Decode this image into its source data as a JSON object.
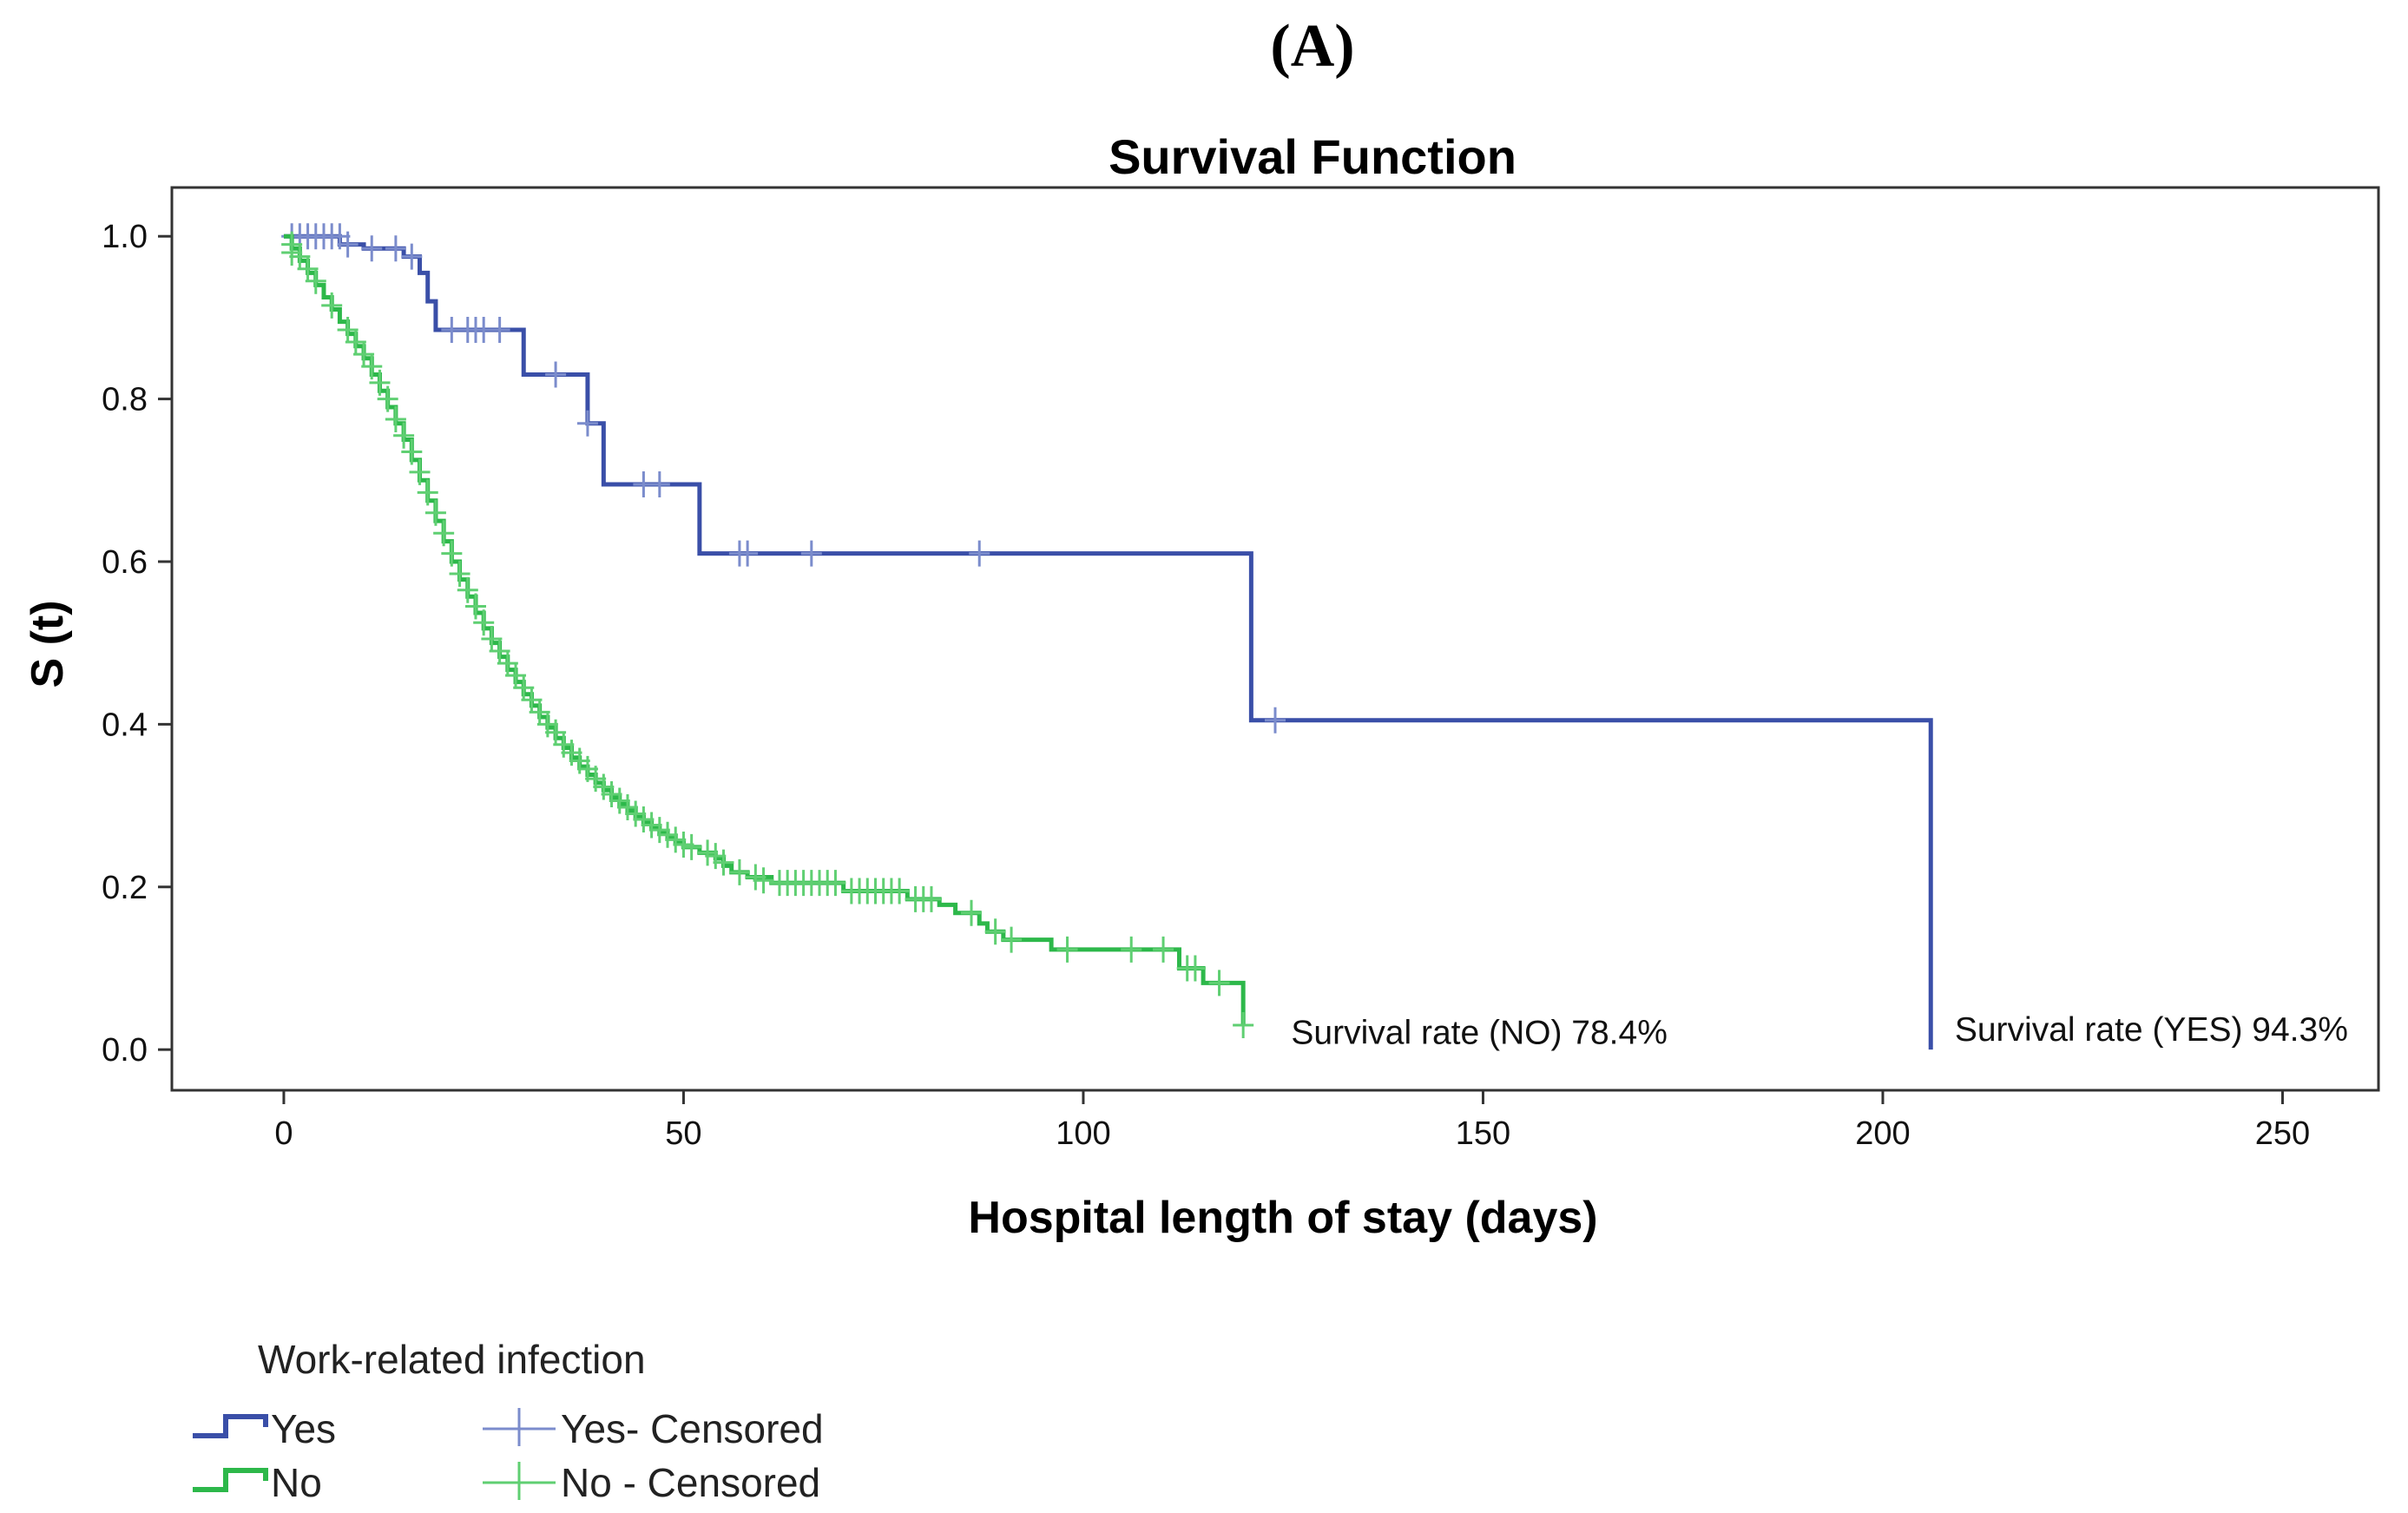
{
  "panel_label": "(A)",
  "chart_data": {
    "type": "line",
    "title": "Survival Function",
    "xlabel": "Hospital length of stay (days)",
    "ylabel": "S (t)",
    "xlim": [
      -14,
      262
    ],
    "ylim": [
      -0.05,
      1.06
    ],
    "xticks": [
      0,
      50,
      100,
      150,
      200,
      250
    ],
    "xtick_labels": [
      "0",
      "50",
      "100",
      "150",
      "200",
      "250"
    ],
    "yticks": [
      0.0,
      0.2,
      0.4,
      0.6,
      0.8,
      1.0
    ],
    "ytick_labels": [
      "0.0",
      "0.2",
      "0.4",
      "0.6",
      "0.8",
      "1.0"
    ],
    "series": [
      {
        "name": "Yes",
        "color": "#3a4fa8",
        "censor_color": "#7b8ccc",
        "steps": [
          [
            0,
            1.0
          ],
          [
            7,
            0.99
          ],
          [
            10,
            0.985
          ],
          [
            15,
            0.975
          ],
          [
            17,
            0.955
          ],
          [
            18,
            0.92
          ],
          [
            19,
            0.885
          ],
          [
            30,
            0.83
          ],
          [
            38,
            0.77
          ],
          [
            40,
            0.695
          ],
          [
            52,
            0.61
          ],
          [
            121,
            0.405
          ],
          [
            206,
            0.0
          ]
        ],
        "end_x": 206,
        "censored": [
          [
            1,
            1.0
          ],
          [
            2,
            1.0
          ],
          [
            3,
            1.0
          ],
          [
            4,
            1.0
          ],
          [
            5,
            1.0
          ],
          [
            6,
            1.0
          ],
          [
            7,
            1.0
          ],
          [
            8,
            0.99
          ],
          [
            11,
            0.985
          ],
          [
            14,
            0.985
          ],
          [
            16,
            0.975
          ],
          [
            21,
            0.885
          ],
          [
            23,
            0.885
          ],
          [
            24,
            0.885
          ],
          [
            25,
            0.885
          ],
          [
            27,
            0.885
          ],
          [
            34,
            0.83
          ],
          [
            38,
            0.77
          ],
          [
            45,
            0.695
          ],
          [
            47,
            0.695
          ],
          [
            57,
            0.61
          ],
          [
            58,
            0.61
          ],
          [
            66,
            0.61
          ],
          [
            87,
            0.61
          ],
          [
            124,
            0.405
          ]
        ]
      },
      {
        "name": "No",
        "color": "#2db84a",
        "censor_color": "#5fcf72",
        "steps": [
          [
            0,
            1.0
          ],
          [
            1,
            0.985
          ],
          [
            2,
            0.97
          ],
          [
            3,
            0.955
          ],
          [
            4,
            0.94
          ],
          [
            5,
            0.925
          ],
          [
            6,
            0.91
          ],
          [
            7,
            0.895
          ],
          [
            8,
            0.88
          ],
          [
            9,
            0.865
          ],
          [
            10,
            0.85
          ],
          [
            11,
            0.83
          ],
          [
            12,
            0.81
          ],
          [
            13,
            0.79
          ],
          [
            14,
            0.77
          ],
          [
            15,
            0.75
          ],
          [
            16,
            0.725
          ],
          [
            17,
            0.7
          ],
          [
            18,
            0.675
          ],
          [
            19,
            0.65
          ],
          [
            20,
            0.625
          ],
          [
            21,
            0.6
          ],
          [
            22,
            0.578
          ],
          [
            23,
            0.557
          ],
          [
            24,
            0.537
          ],
          [
            25,
            0.518
          ],
          [
            26,
            0.5
          ],
          [
            27,
            0.483
          ],
          [
            28,
            0.467
          ],
          [
            29,
            0.452
          ],
          [
            30,
            0.437
          ],
          [
            31,
            0.423
          ],
          [
            32,
            0.409
          ],
          [
            33,
            0.396
          ],
          [
            34,
            0.383
          ],
          [
            35,
            0.371
          ],
          [
            36,
            0.359
          ],
          [
            37,
            0.348
          ],
          [
            38,
            0.338
          ],
          [
            39,
            0.328
          ],
          [
            40,
            0.319
          ],
          [
            41,
            0.31
          ],
          [
            42,
            0.302
          ],
          [
            43,
            0.294
          ],
          [
            44,
            0.287
          ],
          [
            45,
            0.28
          ],
          [
            46,
            0.273
          ],
          [
            47,
            0.267
          ],
          [
            48,
            0.261
          ],
          [
            49,
            0.255
          ],
          [
            50,
            0.249
          ],
          [
            52,
            0.242
          ],
          [
            54,
            0.235
          ],
          [
            55,
            0.226
          ],
          [
            56,
            0.218
          ],
          [
            58,
            0.212
          ],
          [
            61,
            0.205
          ],
          [
            70,
            0.195
          ],
          [
            78,
            0.185
          ],
          [
            82,
            0.178
          ],
          [
            84,
            0.168
          ],
          [
            87,
            0.155
          ],
          [
            88,
            0.145
          ],
          [
            90,
            0.135
          ],
          [
            96,
            0.123
          ],
          [
            112,
            0.1
          ],
          [
            115,
            0.082
          ],
          [
            120,
            0.03
          ]
        ],
        "end_x": 120,
        "censored": [
          [
            1,
            0.99
          ],
          [
            1,
            0.98
          ],
          [
            2,
            0.975
          ],
          [
            3,
            0.96
          ],
          [
            4,
            0.945
          ],
          [
            6,
            0.915
          ],
          [
            8,
            0.885
          ],
          [
            9,
            0.87
          ],
          [
            10,
            0.855
          ],
          [
            11,
            0.84
          ],
          [
            12,
            0.82
          ],
          [
            13,
            0.8
          ],
          [
            14,
            0.775
          ],
          [
            15,
            0.755
          ],
          [
            16,
            0.735
          ],
          [
            17,
            0.71
          ],
          [
            18,
            0.685
          ],
          [
            19,
            0.66
          ],
          [
            20,
            0.635
          ],
          [
            21,
            0.61
          ],
          [
            22,
            0.585
          ],
          [
            23,
            0.565
          ],
          [
            24,
            0.545
          ],
          [
            25,
            0.525
          ],
          [
            26,
            0.505
          ],
          [
            27,
            0.49
          ],
          [
            28,
            0.475
          ],
          [
            29,
            0.46
          ],
          [
            30,
            0.445
          ],
          [
            31,
            0.43
          ],
          [
            32,
            0.415
          ],
          [
            33,
            0.4
          ],
          [
            34,
            0.39
          ],
          [
            35,
            0.375
          ],
          [
            36,
            0.365
          ],
          [
            37,
            0.355
          ],
          [
            38,
            0.345
          ],
          [
            39,
            0.333
          ],
          [
            40,
            0.323
          ],
          [
            41,
            0.314
          ],
          [
            42,
            0.306
          ],
          [
            43,
            0.298
          ],
          [
            44,
            0.29
          ],
          [
            45,
            0.283
          ],
          [
            46,
            0.276
          ],
          [
            47,
            0.27
          ],
          [
            48,
            0.264
          ],
          [
            49,
            0.258
          ],
          [
            50,
            0.252
          ],
          [
            51,
            0.249
          ],
          [
            53,
            0.242
          ],
          [
            54,
            0.238
          ],
          [
            55,
            0.23
          ],
          [
            57,
            0.218
          ],
          [
            59,
            0.212
          ],
          [
            60,
            0.208
          ],
          [
            62,
            0.205
          ],
          [
            63,
            0.205
          ],
          [
            64,
            0.205
          ],
          [
            65,
            0.205
          ],
          [
            66,
            0.205
          ],
          [
            67,
            0.205
          ],
          [
            68,
            0.205
          ],
          [
            69,
            0.205
          ],
          [
            71,
            0.195
          ],
          [
            72,
            0.195
          ],
          [
            73,
            0.195
          ],
          [
            74,
            0.195
          ],
          [
            75,
            0.195
          ],
          [
            76,
            0.195
          ],
          [
            77,
            0.195
          ],
          [
            79,
            0.185
          ],
          [
            80,
            0.185
          ],
          [
            81,
            0.185
          ],
          [
            86,
            0.168
          ],
          [
            89,
            0.145
          ],
          [
            91,
            0.135
          ],
          [
            98,
            0.123
          ],
          [
            106,
            0.123
          ],
          [
            110,
            0.123
          ],
          [
            113,
            0.1
          ],
          [
            114,
            0.1
          ],
          [
            117,
            0.082
          ],
          [
            120,
            0.03
          ]
        ]
      }
    ],
    "annotations": [
      {
        "text": "Survival rate (NO) 78.4%",
        "x": 126,
        "y": 0.022
      },
      {
        "text": "Survival rate (YES) 94.3%",
        "x": 209,
        "y": 0.026
      }
    ],
    "legend": {
      "title": "Work-related infection",
      "entries": [
        {
          "label": "Yes",
          "kind": "line",
          "series": 0
        },
        {
          "label": "Yes- Censored",
          "kind": "censor",
          "series": 0
        },
        {
          "label": "No",
          "kind": "line",
          "series": 1
        },
        {
          "label": "No - Censored",
          "kind": "censor",
          "series": 1
        }
      ]
    }
  }
}
